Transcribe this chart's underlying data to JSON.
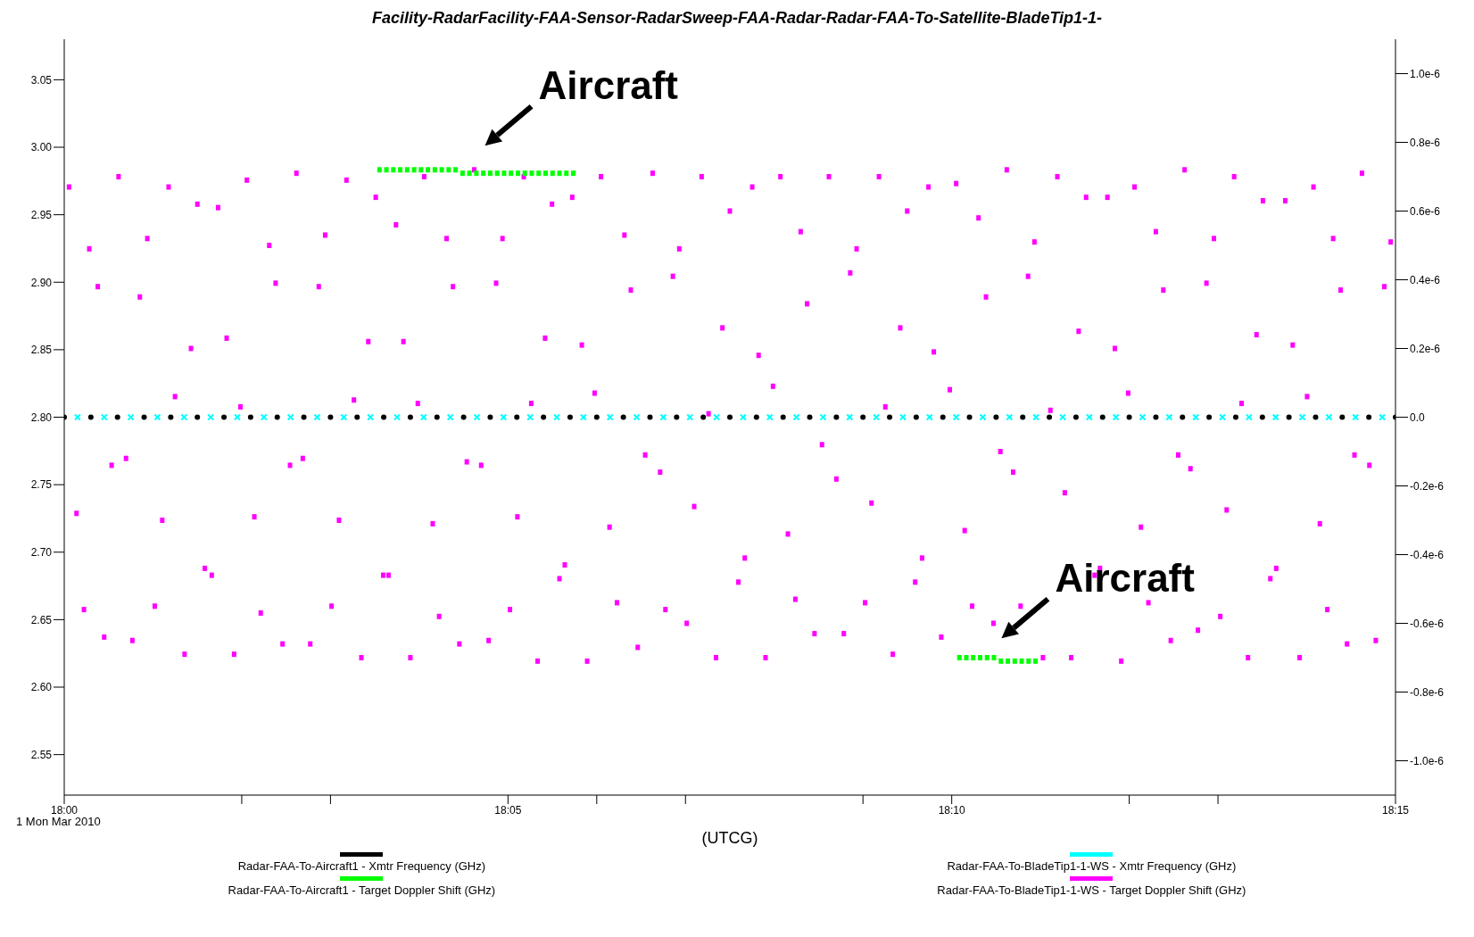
{
  "chart_data": {
    "type": "scatter",
    "title": "Facility-RadarFacility-FAA-Sensor-RadarSweep-FAA-Radar-Radar-FAA-To-Satellite-BladeTip1-1-",
    "xlabel": "(UTCG)",
    "legend": "bottom",
    "xlim": [
      18,
      18.25
    ],
    "xticks": [
      {
        "value": 18,
        "label": "18:00"
      },
      {
        "value": 18.033333,
        "label": null
      },
      {
        "value": 18.05,
        "label": null
      },
      {
        "value": 18.083333,
        "label": "18:05"
      },
      {
        "value": 18.1,
        "label": null
      },
      {
        "value": 18.116667,
        "label": null
      },
      {
        "value": 18.15,
        "label": null
      },
      {
        "value": 18.166667,
        "label": "18:10"
      },
      {
        "value": 18.2,
        "label": null
      },
      {
        "value": 18.216667,
        "label": null
      },
      {
        "value": 18.25,
        "label": "18:15"
      }
    ],
    "ylim": [
      2.52,
      3.08
    ],
    "yticks": [
      {
        "value": 2.55,
        "label": "2.55"
      },
      {
        "value": 2.6,
        "label": "2.60"
      },
      {
        "value": 2.65,
        "label": "2.65"
      },
      {
        "value": 2.7,
        "label": "2.70"
      },
      {
        "value": 2.75,
        "label": "2.75"
      },
      {
        "value": 2.8,
        "label": "2.80"
      },
      {
        "value": 2.85,
        "label": "2.85"
      },
      {
        "value": 2.9,
        "label": "2.90"
      },
      {
        "value": 2.95,
        "label": "2.95"
      },
      {
        "value": 3,
        "label": "3.00"
      },
      {
        "value": 3.05,
        "label": "3.05"
      }
    ],
    "y2lim": [
      -1.1e-06,
      1.1e-06
    ],
    "y2ticks": [
      {
        "value": -1e-06,
        "label": "-1.0e-6"
      },
      {
        "value": -8e-07,
        "label": "-0.8e-6"
      },
      {
        "value": -6e-07,
        "label": "-0.6e-6"
      },
      {
        "value": -4e-07,
        "label": "-0.4e-6"
      },
      {
        "value": -2e-07,
        "label": "-0.2e-6"
      },
      {
        "value": 0,
        "label": "0.0"
      },
      {
        "value": 2e-07,
        "label": "0.2e-6"
      },
      {
        "value": 4e-07,
        "label": "0.4e-6"
      },
      {
        "value": 6e-07,
        "label": "0.6e-6"
      },
      {
        "value": 8e-07,
        "label": "0.8e-6"
      },
      {
        "value": 1e-06,
        "label": "1.0e-6"
      }
    ],
    "x": [
      18,
      18.005,
      18.01,
      18.015,
      18.02,
      18.025,
      18.03,
      18.035,
      18.04,
      18.045,
      18.05,
      18.055,
      18.06,
      18.065,
      18.07,
      18.075,
      18.08,
      18.085,
      18.09,
      18.095,
      18.1,
      18.105,
      18.11,
      18.115,
      18.12,
      18.125,
      18.13,
      18.135,
      18.14,
      18.145,
      18.15,
      18.155,
      18.16,
      18.165,
      18.17,
      18.175,
      18.18,
      18.185,
      18.19,
      18.195,
      18.2,
      18.205,
      18.21,
      18.215,
      18.22,
      18.225,
      18.23,
      18.235,
      18.24,
      18.245,
      18.25
    ],
    "series": [
      {
        "name": "Radar-FAA-To-Aircraft1 - Xmtr Frequency (GHz)",
        "color": "#000000",
        "marker": "circle",
        "values": [
          2.8,
          2.8,
          2.8,
          2.8,
          2.8,
          2.8,
          2.8,
          2.8,
          2.8,
          2.8,
          2.8,
          2.8,
          2.8,
          2.8,
          2.8,
          2.8,
          2.8,
          2.8,
          2.8,
          2.8,
          2.8,
          2.8,
          2.8,
          2.8,
          2.8,
          2.8,
          2.8,
          2.8,
          2.8,
          2.8,
          2.8,
          2.8,
          2.8,
          2.8,
          2.8,
          2.8,
          2.8,
          2.8,
          2.8,
          2.8,
          2.8,
          2.8,
          2.8,
          2.8,
          2.8,
          2.8,
          2.8,
          2.8,
          2.8,
          2.8,
          2.8
        ]
      },
      {
        "name": "Radar-FAA-To-BladeTip1-1-WS - Xmtr Frequency (GHz)",
        "color": "#00ffff",
        "marker": "cross",
        "x": [
          18.0025,
          18.0075,
          18.0125,
          18.0175,
          18.0225,
          18.0275,
          18.0325,
          18.0375,
          18.0425,
          18.0475,
          18.0525,
          18.0575,
          18.0625,
          18.0675,
          18.0725,
          18.0775,
          18.0825,
          18.0875,
          18.0925,
          18.0975,
          18.1025,
          18.1075,
          18.1125,
          18.1175,
          18.1225,
          18.1275,
          18.1325,
          18.1375,
          18.1425,
          18.1475,
          18.1525,
          18.1575,
          18.1625,
          18.1675,
          18.1725,
          18.1775,
          18.1825,
          18.1875,
          18.1925,
          18.1975,
          18.2025,
          18.2075,
          18.2125,
          18.2175,
          18.2225,
          18.2275,
          18.2325,
          18.2375,
          18.2425,
          18.2475
        ],
        "values": [
          2.8,
          2.8,
          2.8,
          2.8,
          2.8,
          2.8,
          2.8,
          2.8,
          2.8,
          2.8,
          2.8,
          2.8,
          2.8,
          2.8,
          2.8,
          2.8,
          2.8,
          2.8,
          2.8,
          2.8,
          2.8,
          2.8,
          2.8,
          2.8,
          2.8,
          2.8,
          2.8,
          2.8,
          2.8,
          2.8,
          2.8,
          2.8,
          2.8,
          2.8,
          2.8,
          2.8,
          2.8,
          2.8,
          2.8,
          2.8,
          2.8,
          2.8,
          2.8,
          2.8,
          2.8,
          2.8,
          2.8,
          2.8,
          2.8,
          2.8
        ]
      },
      {
        "name": "Radar-FAA-To-BladeTip1-1-WS - Target Doppler Shift (GHz)",
        "color": "#ff00ff",
        "marker": "square",
        "axis": "y2",
        "x": [
          18.0009,
          18.0023,
          18.0037,
          18.0047,
          18.0063,
          18.0075,
          18.0089,
          18.0102,
          18.0116,
          18.0128,
          18.0142,
          18.0156,
          18.017,
          18.0184,
          18.0196,
          18.0208,
          18.0226,
          18.0238,
          18.025,
          18.0264,
          18.0277,
          18.0289,
          18.0305,
          18.0319,
          18.0331,
          18.0343,
          18.0357,
          18.0369,
          18.0385,
          18.0397,
          18.041,
          18.0424,
          18.0436,
          18.0448,
          18.0462,
          18.0478,
          18.049,
          18.0502,
          18.0516,
          18.053,
          18.0544,
          18.0558,
          18.0571,
          18.0585,
          18.0599,
          18.0609,
          18.0623,
          18.0637,
          18.065,
          18.0664,
          18.0676,
          18.0692,
          18.0704,
          18.0718,
          18.073,
          18.0742,
          18.0756,
          18.077,
          18.0783,
          18.0797,
          18.0811,
          18.0823,
          18.0837,
          18.0851,
          18.0863,
          18.0877,
          18.0889,
          18.0903,
          18.0916,
          18.093,
          18.094,
          18.0954,
          18.0972,
          18.0982,
          18.0996,
          18.1008,
          18.1024,
          18.1038,
          18.1052,
          18.1064,
          18.1077,
          18.1091,
          18.1105,
          18.1119,
          18.1129,
          18.1143,
          18.1155,
          18.1169,
          18.1183,
          18.1197,
          18.121,
          18.1224,
          18.1236,
          18.125,
          18.1266,
          18.1278,
          18.1292,
          18.1304,
          18.1317,
          18.1331,
          18.1345,
          18.1359,
          18.1373,
          18.1383,
          18.1395,
          18.1409,
          18.1423,
          18.1436,
          18.145,
          18.1464,
          18.1476,
          18.1488,
          18.1504,
          18.1516,
          18.153,
          18.1542,
          18.1556,
          18.157,
          18.1583,
          18.1598,
          18.1611,
          18.1623,
          18.1633,
          18.1647,
          18.1663,
          18.1675,
          18.1691,
          18.1705,
          18.1717,
          18.1731,
          18.1745,
          18.1758,
          18.177,
          18.1782,
          18.1796,
          18.181,
          18.1822,
          18.1838,
          18.1852,
          18.1865,
          18.1879,
          18.1891,
          18.1905,
          18.1919,
          18.1935,
          18.1945,
          18.1959,
          18.1973,
          18.1985,
          18.1998,
          18.201,
          18.2022,
          18.2036,
          18.205,
          18.2064,
          18.2078,
          18.2092,
          18.2104,
          18.2115,
          18.2129,
          18.2145,
          18.2159,
          18.2171,
          18.2183,
          18.2197,
          18.2211,
          18.2223,
          18.2239,
          18.2251,
          18.2265,
          18.2276,
          18.2293,
          18.2307,
          18.232,
          18.2334,
          18.2346,
          18.2358,
          18.2372,
          18.2383,
          18.2397,
          18.2409,
          18.2423,
          18.2437,
          18.2451,
          18.2463,
          18.2479,
          18.2491
        ],
        "values": [
          6.7e-07,
          -2.8e-07,
          -5.6e-07,
          4.9e-07,
          3.8e-07,
          -6.4e-07,
          -1.4e-07,
          7e-07,
          -1.2e-07,
          -6.5e-07,
          3.5e-07,
          5.2e-07,
          -5.5e-07,
          -3e-07,
          6.7e-07,
          6e-08,
          -6.9e-07,
          2e-07,
          6.2e-07,
          -4.4e-07,
          -4.6e-07,
          6.1e-07,
          2.3e-07,
          -6.9e-07,
          3e-08,
          6.9e-07,
          -2.9e-07,
          -5.7e-07,
          5e-07,
          3.9e-07,
          -6.6e-07,
          -1.4e-07,
          7.1e-07,
          -1.2e-07,
          -6.6e-07,
          3.8e-07,
          5.3e-07,
          -5.5e-07,
          -3e-07,
          6.9e-07,
          5e-08,
          -7e-07,
          2.2e-07,
          6.4e-07,
          -4.6e-07,
          -4.6e-07,
          5.6e-07,
          2.2e-07,
          -7e-07,
          4e-08,
          7e-07,
          -3.1e-07,
          -5.8e-07,
          5.2e-07,
          3.8e-07,
          -6.6e-07,
          -1.3e-07,
          7.2e-07,
          -1.4e-07,
          -6.5e-07,
          3.9e-07,
          5.2e-07,
          -5.6e-07,
          -2.9e-07,
          7e-07,
          4e-08,
          -7.1e-07,
          2.3e-07,
          6.2e-07,
          -4.7e-07,
          -4.3e-07,
          6.4e-07,
          2.1e-07,
          -7.1e-07,
          7e-08,
          7e-07,
          -3.2e-07,
          -5.4e-07,
          5.3e-07,
          3.7e-07,
          -6.7e-07,
          -1.1e-07,
          7.1e-07,
          -1.6e-07,
          -5.6e-07,
          4.1e-07,
          4.9e-07,
          -6e-07,
          -2.6e-07,
          7e-07,
          1e-08,
          -7e-07,
          2.6e-07,
          6e-07,
          -4.8e-07,
          -4.1e-07,
          6.7e-07,
          1.8e-07,
          -7e-07,
          9e-08,
          7e-07,
          -3.4e-07,
          -5.3e-07,
          5.4e-07,
          3.3e-07,
          -6.3e-07,
          -8e-08,
          7e-07,
          -1.8e-07,
          -6.3e-07,
          4.2e-07,
          4.9e-07,
          -5.4e-07,
          -2.5e-07,
          7e-07,
          3e-08,
          -6.9e-07,
          2.6e-07,
          6e-07,
          -4.8e-07,
          -4.1e-07,
          6.7e-07,
          1.9e-07,
          -6.4e-07,
          8e-08,
          6.8e-07,
          -3.3e-07,
          -5.5e-07,
          5.8e-07,
          3.5e-07,
          -6e-07,
          -1e-07,
          7.2e-07,
          -1.6e-07,
          -5.5e-07,
          4.1e-07,
          5.1e-07,
          -7e-07,
          2e-08,
          7e-07,
          -2.2e-07,
          -7e-07,
          2.5e-07,
          6.4e-07,
          -4.6e-07,
          -4.4e-07,
          6.4e-07,
          2e-07,
          -7.1e-07,
          7e-08,
          6.7e-07,
          -3.2e-07,
          -5.4e-07,
          5.4e-07,
          3.7e-07,
          -6.5e-07,
          -1.1e-07,
          7.2e-07,
          -1.5e-07,
          -6.2e-07,
          3.9e-07,
          5.2e-07,
          -5.8e-07,
          -2.7e-07,
          7e-07,
          4e-08,
          -7e-07,
          2.4e-07,
          6.3e-07,
          -4.7e-07,
          -4.4e-07,
          6.3e-07,
          2.1e-07,
          -7e-07,
          6e-08,
          6.7e-07,
          -3.1e-07,
          -5.6e-07,
          5.2e-07,
          3.7e-07,
          -6.6e-07,
          -1.1e-07,
          7.1e-07,
          -1.4e-07,
          -6.5e-07,
          3.8e-07,
          5.1e-07
        ]
      },
      {
        "name": "Radar-FAA-To-Aircraft1 - Target Doppler Shift (GHz)",
        "color": "#00ff00",
        "marker": "square",
        "axis": "y2",
        "x": [
          18.0592,
          18.0605,
          18.0618,
          18.0631,
          18.0644,
          18.0657,
          18.067,
          18.0683,
          18.0696,
          18.0709,
          18.0722,
          18.0735,
          18.0748,
          18.0761,
          18.0774,
          18.0787,
          18.08,
          18.0813,
          18.0826,
          18.0839,
          18.0852,
          18.0865,
          18.0878,
          18.0891,
          18.0904,
          18.0917,
          18.093,
          18.0943,
          18.0956,
          18.1681,
          18.1694,
          18.1707,
          18.172,
          18.1733,
          18.1746,
          18.1759,
          18.1772,
          18.1785,
          18.1798,
          18.1811,
          18.1824
        ],
        "values": [
          7.2e-07,
          7.2e-07,
          7.2e-07,
          7.2e-07,
          7.2e-07,
          7.2e-07,
          7.2e-07,
          7.2e-07,
          7.2e-07,
          7.2e-07,
          7.2e-07,
          7.2e-07,
          7.1e-07,
          7.1e-07,
          7.1e-07,
          7.1e-07,
          7.1e-07,
          7.1e-07,
          7.1e-07,
          7.1e-07,
          7.1e-07,
          7.1e-07,
          7.1e-07,
          7.1e-07,
          7.1e-07,
          7.1e-07,
          7.1e-07,
          7.1e-07,
          7.1e-07,
          -7e-07,
          -7e-07,
          -7e-07,
          -7e-07,
          -7e-07,
          -7e-07,
          -7.1e-07,
          -7.1e-07,
          -7.1e-07,
          -7.1e-07,
          -7.1e-07,
          -7.1e-07
        ]
      }
    ],
    "annotations": [
      {
        "text": "Aircraft",
        "x": 18.077,
        "y": 2.984
      },
      {
        "text": "Aircraft",
        "x": 18.174,
        "y": 2.619
      },
      "1 Mon Mar 2010"
    ]
  }
}
